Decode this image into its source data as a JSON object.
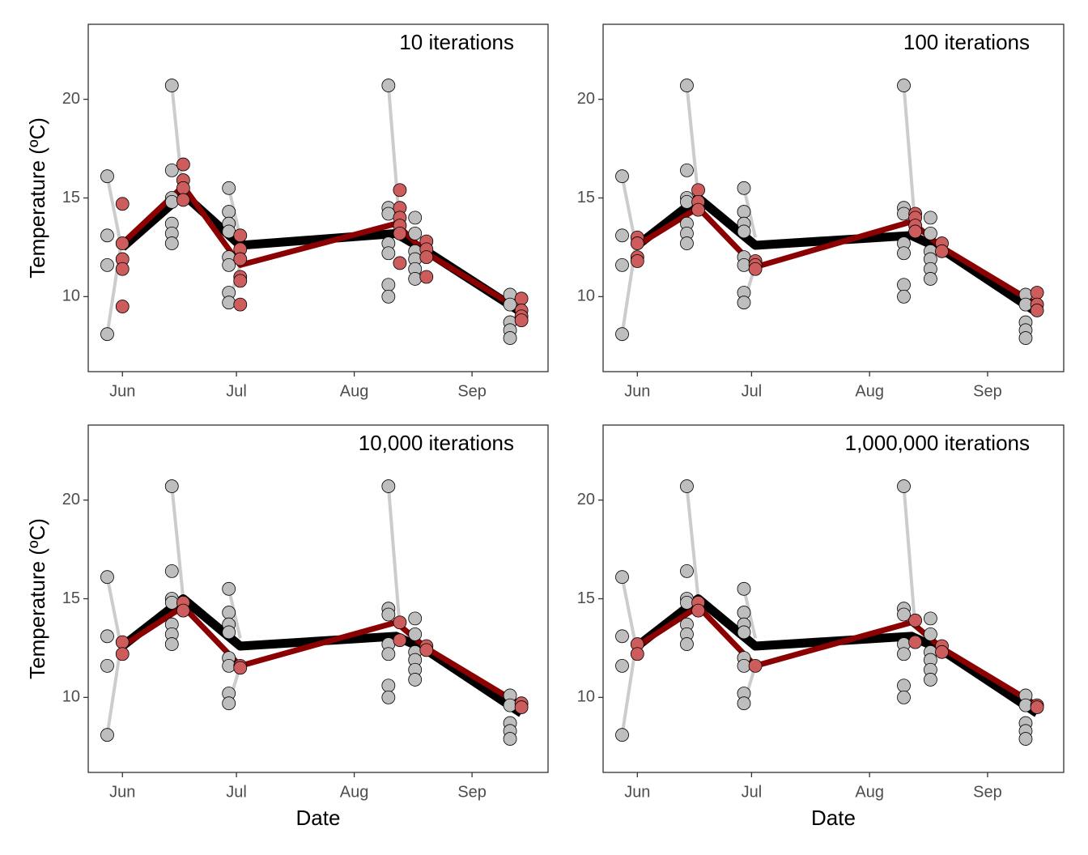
{
  "chart_data": [
    {
      "type": "scatter",
      "title": "10 iterations",
      "ylabel": "Temperature (ºC)",
      "xlim": [
        -9,
        112
      ],
      "ylim": [
        6.2,
        23.8
      ],
      "xticks": [
        {
          "value": 0,
          "label": "Jun"
        },
        {
          "value": 30,
          "label": "Jul"
        },
        {
          "value": 61,
          "label": "Aug"
        },
        {
          "value": 92,
          "label": "Sep"
        }
      ],
      "yticks": [
        10,
        15,
        20
      ],
      "series": [
        {
          "mode": "line",
          "color": "#cccccc",
          "width": 4,
          "x": [
            -4,
            -0.5,
            null,
            -4,
            -0.5,
            null,
            13,
            16,
            null,
            28,
            31,
            null,
            28,
            31,
            null,
            70,
            73
          ],
          "values": [
            16.1,
            12.7,
            null,
            8.1,
            12.5,
            null,
            20.7,
            15.0,
            null,
            15.5,
            13.0,
            null,
            9.7,
            11.6,
            null,
            20.7,
            13.5
          ]
        },
        {
          "mode": "line",
          "color": "#000000",
          "width": 11,
          "x": [
            0,
            16,
            31,
            72,
            80,
            105
          ],
          "values": [
            12.5,
            15.2,
            12.6,
            13.2,
            12.3,
            9.2
          ]
        },
        {
          "mode": "line",
          "color": "#8b0000",
          "width": 7,
          "x": [
            0,
            16,
            31,
            72,
            80,
            105
          ],
          "values": [
            12.7,
            15.6,
            11.6,
            13.7,
            12.2,
            9.3
          ]
        },
        {
          "mode": "markers",
          "color": "#bebebe",
          "x": [
            -4,
            -4,
            -4,
            -4,
            13,
            13,
            13,
            13,
            13,
            13,
            13,
            28,
            28,
            28,
            28,
            28,
            28,
            28,
            28,
            70,
            70,
            70,
            70,
            70,
            70,
            70,
            77,
            77,
            77,
            77,
            77,
            77,
            102,
            102,
            102,
            102,
            102
          ],
          "values": [
            16.1,
            13.1,
            11.6,
            8.1,
            20.7,
            16.4,
            15.0,
            14.8,
            13.7,
            13.2,
            12.7,
            15.5,
            14.3,
            13.7,
            13.3,
            12.0,
            11.6,
            10.2,
            9.7,
            20.7,
            14.5,
            14.2,
            12.7,
            12.2,
            10.6,
            10.0,
            14.0,
            13.2,
            12.3,
            11.9,
            11.4,
            10.9,
            10.1,
            9.6,
            8.7,
            8.3,
            7.9
          ]
        },
        {
          "mode": "markers",
          "color": "#cd5c5c",
          "x": [
            0,
            0,
            0,
            0,
            0,
            16,
            16,
            16,
            16,
            31,
            31,
            31,
            31,
            31,
            31,
            73,
            73,
            73,
            73,
            73,
            73,
            80,
            80,
            80,
            80,
            105,
            105,
            105,
            105
          ],
          "values": [
            14.7,
            12.7,
            11.9,
            11.4,
            9.5,
            16.7,
            15.9,
            15.5,
            14.9,
            13.1,
            12.4,
            11.9,
            11.0,
            10.8,
            9.6,
            15.4,
            14.5,
            14.0,
            13.6,
            13.2,
            11.7,
            12.8,
            12.4,
            12.0,
            11.0,
            9.9,
            9.3,
            9.0,
            8.8
          ]
        }
      ]
    },
    {
      "type": "scatter",
      "title": "100 iterations",
      "xlim": [
        -9,
        112
      ],
      "ylim": [
        6.2,
        23.8
      ],
      "xticks": [
        {
          "value": 0,
          "label": "Jun"
        },
        {
          "value": 30,
          "label": "Jul"
        },
        {
          "value": 61,
          "label": "Aug"
        },
        {
          "value": 92,
          "label": "Sep"
        }
      ],
      "yticks": [
        10,
        15,
        20
      ],
      "series": [
        {
          "mode": "line",
          "color": "#cccccc",
          "width": 4,
          "x": [
            -4,
            -0.5,
            null,
            -4,
            -0.5,
            null,
            13,
            16,
            null,
            28,
            31,
            null,
            28,
            31,
            null,
            70,
            73
          ],
          "values": [
            16.1,
            12.7,
            null,
            8.1,
            12.5,
            null,
            20.7,
            15.0,
            null,
            15.5,
            13.0,
            null,
            9.7,
            11.6,
            null,
            20.7,
            13.5
          ]
        },
        {
          "mode": "line",
          "color": "#000000",
          "width": 11,
          "x": [
            0,
            16,
            31,
            72,
            80,
            105
          ],
          "values": [
            12.6,
            15.0,
            12.6,
            13.1,
            12.4,
            9.2
          ]
        },
        {
          "mode": "line",
          "color": "#8b0000",
          "width": 7,
          "x": [
            0,
            16,
            31,
            72,
            80,
            105
          ],
          "values": [
            12.6,
            14.5,
            11.5,
            13.8,
            12.5,
            9.6
          ]
        },
        {
          "mode": "markers",
          "color": "#bebebe",
          "x": [
            -4,
            -4,
            -4,
            -4,
            13,
            13,
            13,
            13,
            13,
            13,
            13,
            28,
            28,
            28,
            28,
            28,
            28,
            28,
            28,
            70,
            70,
            70,
            70,
            70,
            70,
            70,
            77,
            77,
            77,
            77,
            77,
            77,
            102,
            102,
            102,
            102,
            102
          ],
          "values": [
            16.1,
            13.1,
            11.6,
            8.1,
            20.7,
            16.4,
            15.0,
            14.8,
            13.7,
            13.2,
            12.7,
            15.5,
            14.3,
            13.7,
            13.3,
            12.0,
            11.6,
            10.2,
            9.7,
            20.7,
            14.5,
            14.2,
            12.7,
            12.2,
            10.6,
            10.0,
            14.0,
            13.2,
            12.3,
            11.9,
            11.4,
            10.9,
            10.1,
            9.6,
            8.7,
            8.3,
            7.9
          ]
        },
        {
          "mode": "markers",
          "color": "#cd5c5c",
          "x": [
            0,
            0,
            0,
            0,
            16,
            16,
            16,
            31,
            31,
            31,
            73,
            73,
            73,
            73,
            80,
            80,
            105,
            105,
            105
          ],
          "values": [
            13.0,
            12.7,
            12.0,
            11.8,
            15.4,
            14.8,
            14.4,
            11.8,
            11.6,
            11.4,
            14.2,
            14.0,
            13.6,
            13.3,
            12.7,
            12.3,
            10.2,
            9.6,
            9.3
          ]
        }
      ]
    },
    {
      "type": "scatter",
      "title": "10,000 iterations",
      "ylabel": "Temperature (ºC)",
      "xlabel": "Date",
      "xlim": [
        -9,
        112
      ],
      "ylim": [
        6.2,
        23.8
      ],
      "xticks": [
        {
          "value": 0,
          "label": "Jun"
        },
        {
          "value": 30,
          "label": "Jul"
        },
        {
          "value": 61,
          "label": "Aug"
        },
        {
          "value": 92,
          "label": "Sep"
        }
      ],
      "yticks": [
        10,
        15,
        20
      ],
      "series": [
        {
          "mode": "line",
          "color": "#cccccc",
          "width": 4,
          "x": [
            -4,
            -0.5,
            null,
            -4,
            -0.5,
            null,
            13,
            16,
            null,
            28,
            31,
            null,
            28,
            31,
            null,
            70,
            73
          ],
          "values": [
            16.1,
            12.7,
            null,
            8.1,
            12.5,
            null,
            20.7,
            15.0,
            null,
            15.5,
            13.0,
            null,
            9.7,
            11.6,
            null,
            20.7,
            13.5
          ]
        },
        {
          "mode": "line",
          "color": "#000000",
          "width": 11,
          "x": [
            0,
            16,
            31,
            72,
            80,
            105
          ],
          "values": [
            12.6,
            15.0,
            12.6,
            13.1,
            12.4,
            9.2
          ]
        },
        {
          "mode": "line",
          "color": "#8b0000",
          "width": 7,
          "x": [
            0,
            16,
            31,
            72,
            80,
            105
          ],
          "values": [
            12.6,
            14.6,
            11.6,
            13.8,
            12.5,
            9.6
          ]
        },
        {
          "mode": "markers",
          "color": "#bebebe",
          "x": [
            -4,
            -4,
            -4,
            -4,
            13,
            13,
            13,
            13,
            13,
            13,
            13,
            28,
            28,
            28,
            28,
            28,
            28,
            28,
            28,
            70,
            70,
            70,
            70,
            70,
            70,
            70,
            77,
            77,
            77,
            77,
            77,
            77,
            102,
            102,
            102,
            102,
            102
          ],
          "values": [
            16.1,
            13.1,
            11.6,
            8.1,
            20.7,
            16.4,
            15.0,
            14.8,
            13.7,
            13.2,
            12.7,
            15.5,
            14.3,
            13.7,
            13.3,
            12.0,
            11.6,
            10.2,
            9.7,
            20.7,
            14.5,
            14.2,
            12.7,
            12.2,
            10.6,
            10.0,
            14.0,
            13.2,
            12.3,
            11.9,
            11.4,
            10.9,
            10.1,
            9.6,
            8.7,
            8.3,
            7.9
          ]
        },
        {
          "mode": "markers",
          "color": "#cd5c5c",
          "x": [
            0,
            0,
            16,
            16,
            31,
            31,
            73,
            73,
            80,
            80,
            105,
            105
          ],
          "values": [
            12.8,
            12.2,
            14.8,
            14.4,
            11.6,
            11.5,
            13.8,
            12.9,
            12.6,
            12.4,
            9.7,
            9.5
          ]
        }
      ]
    },
    {
      "type": "scatter",
      "title": "1,000,000 iterations",
      "xlabel": "Date",
      "xlim": [
        -9,
        112
      ],
      "ylim": [
        6.2,
        23.8
      ],
      "xticks": [
        {
          "value": 0,
          "label": "Jun"
        },
        {
          "value": 30,
          "label": "Jul"
        },
        {
          "value": 61,
          "label": "Aug"
        },
        {
          "value": 92,
          "label": "Sep"
        }
      ],
      "yticks": [
        10,
        15,
        20
      ],
      "series": [
        {
          "mode": "line",
          "color": "#cccccc",
          "width": 4,
          "x": [
            -4,
            -0.5,
            null,
            -4,
            -0.5,
            null,
            13,
            16,
            null,
            28,
            31,
            null,
            28,
            31,
            null,
            70,
            73
          ],
          "values": [
            16.1,
            12.7,
            null,
            8.1,
            12.5,
            null,
            20.7,
            15.0,
            null,
            15.5,
            13.0,
            null,
            9.7,
            11.6,
            null,
            20.7,
            13.5
          ]
        },
        {
          "mode": "line",
          "color": "#000000",
          "width": 11,
          "x": [
            0,
            16,
            31,
            72,
            80,
            105
          ],
          "values": [
            12.6,
            15.0,
            12.6,
            13.1,
            12.4,
            9.2
          ]
        },
        {
          "mode": "line",
          "color": "#8b0000",
          "width": 7,
          "x": [
            0,
            16,
            31,
            72,
            80,
            105
          ],
          "values": [
            12.6,
            14.6,
            11.6,
            13.8,
            12.5,
            9.6
          ]
        },
        {
          "mode": "markers",
          "color": "#bebebe",
          "x": [
            -4,
            -4,
            -4,
            -4,
            13,
            13,
            13,
            13,
            13,
            13,
            13,
            28,
            28,
            28,
            28,
            28,
            28,
            28,
            28,
            70,
            70,
            70,
            70,
            70,
            70,
            70,
            77,
            77,
            77,
            77,
            77,
            77,
            102,
            102,
            102,
            102,
            102
          ],
          "values": [
            16.1,
            13.1,
            11.6,
            8.1,
            20.7,
            16.4,
            15.0,
            14.8,
            13.7,
            13.2,
            12.7,
            15.5,
            14.3,
            13.7,
            13.3,
            12.0,
            11.6,
            10.2,
            9.7,
            20.7,
            14.5,
            14.2,
            12.7,
            12.2,
            10.6,
            10.0,
            14.0,
            13.2,
            12.3,
            11.9,
            11.4,
            10.9,
            10.1,
            9.6,
            8.7,
            8.3,
            7.9
          ]
        },
        {
          "mode": "markers",
          "color": "#cd5c5c",
          "x": [
            0,
            0,
            16,
            16,
            31,
            73,
            73,
            80,
            80,
            105,
            105
          ],
          "values": [
            12.7,
            12.2,
            14.8,
            14.4,
            11.6,
            13.9,
            12.8,
            12.6,
            12.3,
            9.6,
            9.5
          ]
        }
      ]
    }
  ]
}
